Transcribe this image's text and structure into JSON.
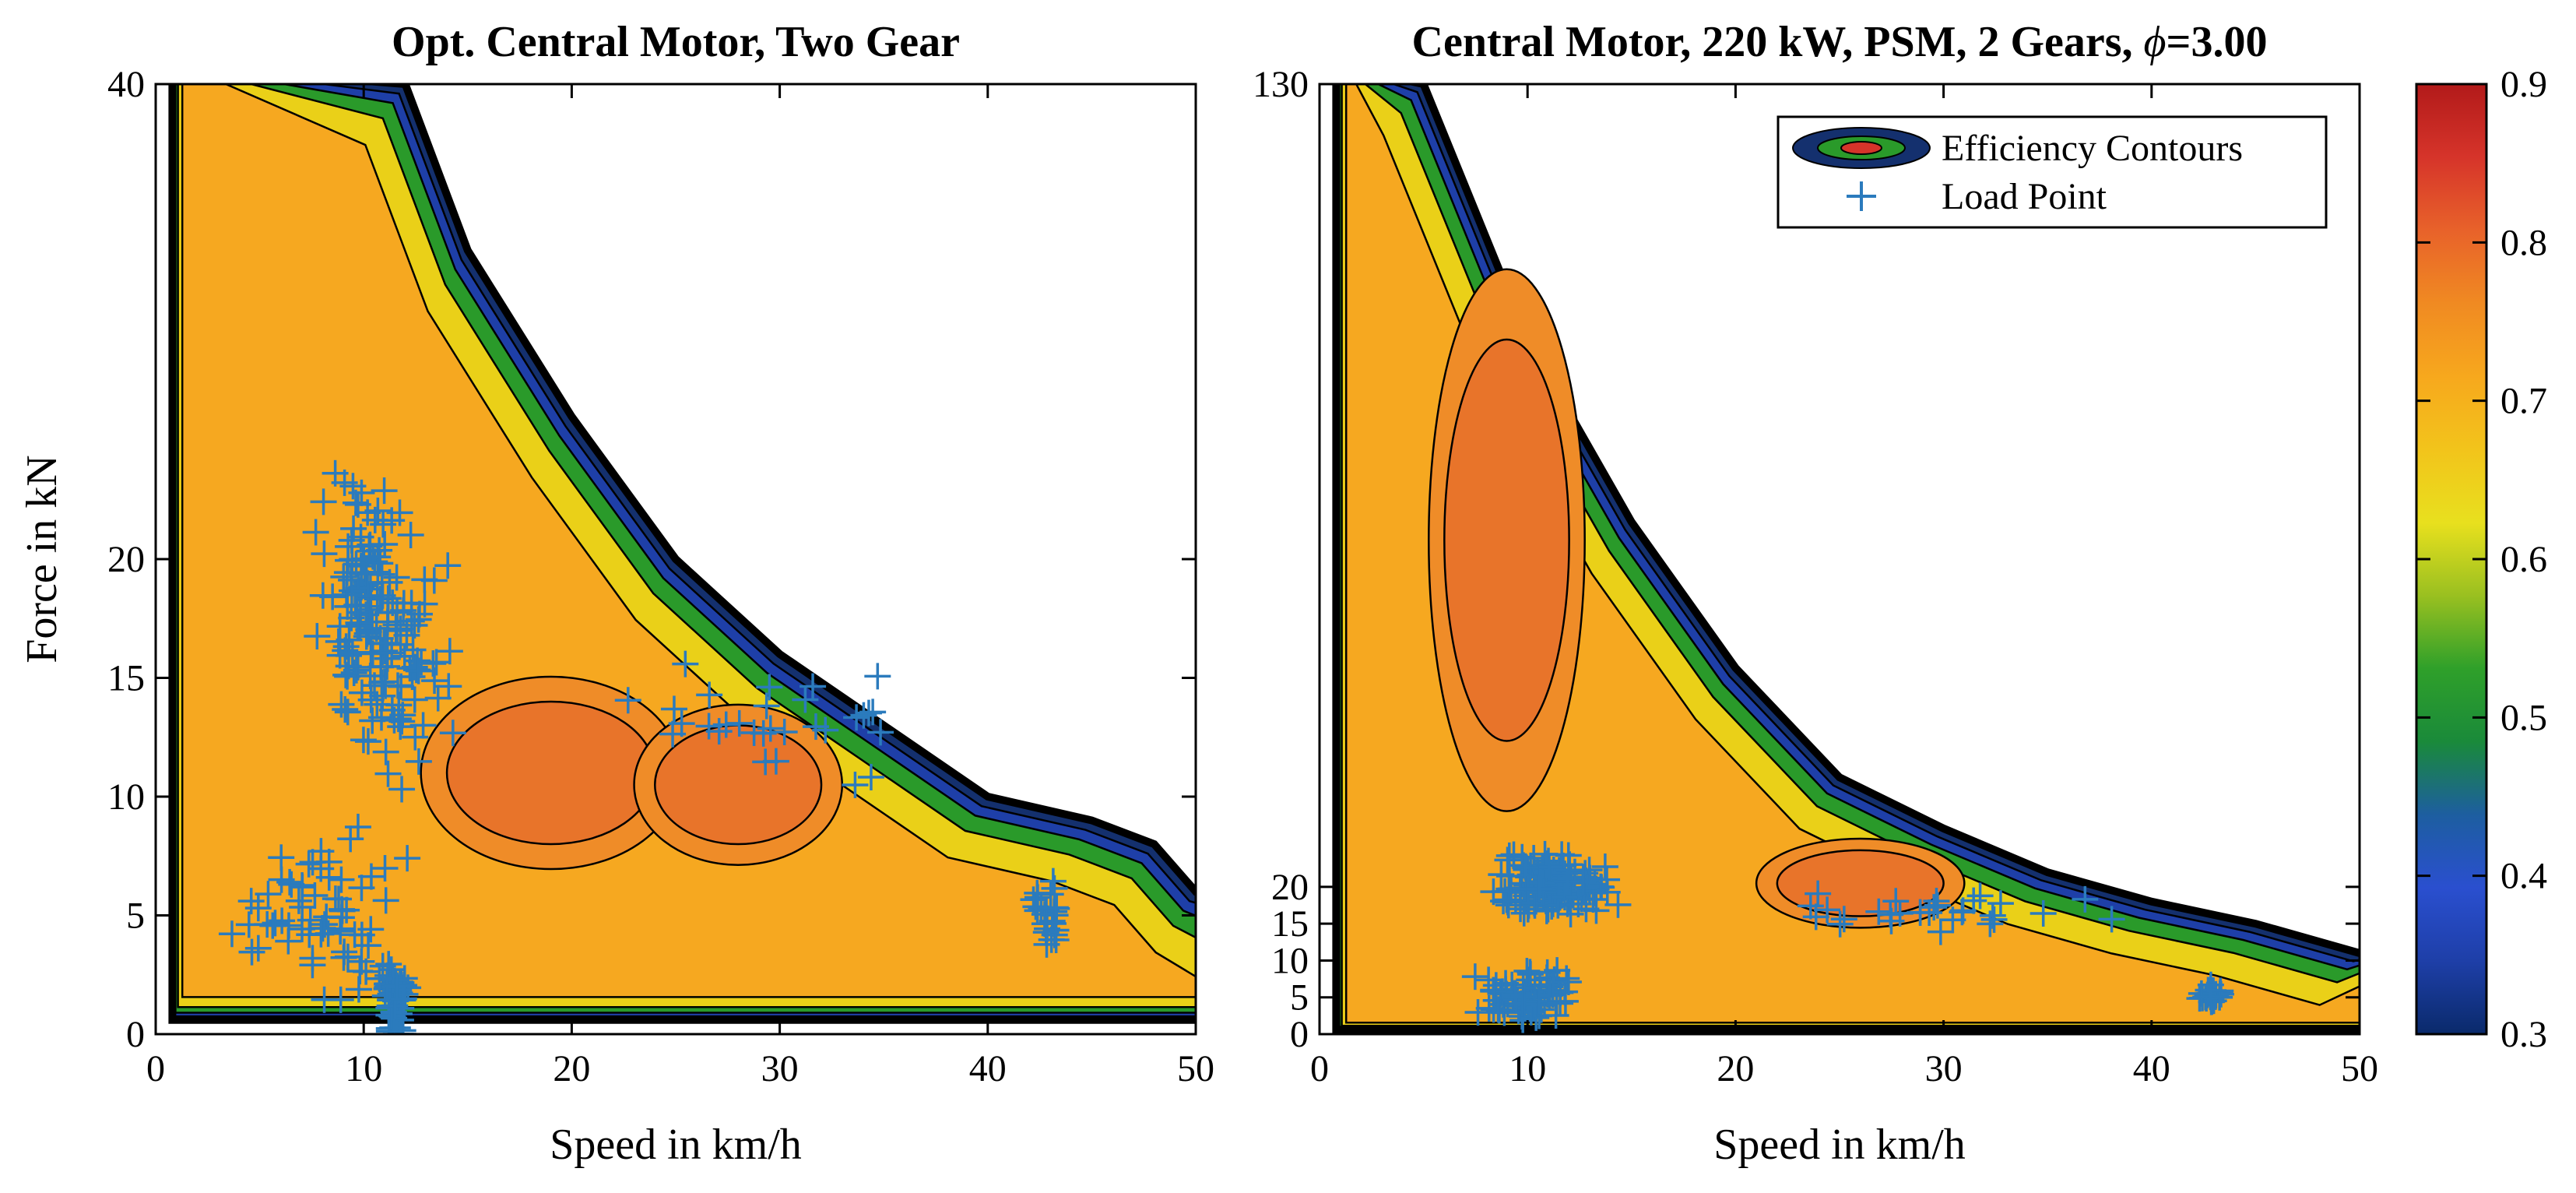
{
  "chart_data": [
    {
      "type": "contour",
      "title": "Opt. Central Motor, Two Gear",
      "xlabel": "Speed in km/h",
      "ylabel": "Force in kN",
      "xlim": [
        0,
        50
      ],
      "ylim": [
        0,
        40
      ],
      "xticks": [
        "0",
        "10",
        "20",
        "30",
        "40",
        "50"
      ],
      "yticks": [
        "0",
        "5",
        "10",
        "15",
        "20",
        "40"
      ],
      "contour_levels": [
        0.3,
        0.4,
        0.5,
        0.6,
        0.7,
        0.75,
        0.8,
        0.83,
        0.86
      ],
      "peak_efficiency_regions": [
        {
          "x": [
            14,
            24
          ],
          "y": [
            8,
            14
          ],
          "efficiency": 0.86
        },
        {
          "x": [
            24,
            32
          ],
          "y": [
            8,
            13
          ],
          "efficiency": 0.86
        }
      ],
      "max_force_envelope": {
        "x": [
          12,
          15,
          20,
          25,
          30,
          35,
          40,
          45,
          48,
          50
        ],
        "y": [
          40,
          33,
          26,
          20,
          16,
          13,
          10,
          9,
          8,
          6
        ]
      },
      "load_points": {
        "name": "Load Point",
        "clusters": [
          {
            "x_center": 10,
            "y_center": 18,
            "x_spread": 3,
            "y_spread": 7,
            "count": 120
          },
          {
            "x_center": 12,
            "y_center": 16,
            "x_spread": 3,
            "y_spread": 6,
            "count": 60
          },
          {
            "x_center": 11.5,
            "y_center": 1.5,
            "x_spread": 0.8,
            "y_spread": 2.5,
            "count": 60
          },
          {
            "x_center": 8,
            "y_center": 5,
            "x_spread": 5,
            "y_spread": 5,
            "count": 70
          },
          {
            "x_center": 43,
            "y_center": 5,
            "x_spread": 1,
            "y_spread": 2,
            "count": 25
          },
          {
            "x_center": 30,
            "y_center": 13,
            "x_spread": 9,
            "y_spread": 3,
            "count": 30
          }
        ]
      }
    },
    {
      "type": "contour",
      "title": "Central Motor, 220 kW, PSM, 2 Gears, ",
      "title_phi": "ϕ",
      "title_suffix": "=3.00",
      "xlabel": "Speed in km/h",
      "ylabel": "",
      "xlim": [
        0,
        50
      ],
      "ylim": [
        0,
        130
      ],
      "xticks": [
        "0",
        "10",
        "20",
        "30",
        "40",
        "50"
      ],
      "yticks": [
        "0",
        "5",
        "10",
        "15",
        "20",
        "130"
      ],
      "contour_levels": [
        0.3,
        0.4,
        0.5,
        0.6,
        0.7,
        0.75,
        0.8,
        0.85
      ],
      "peak_efficiency_regions": [
        {
          "x": [
            6,
            12
          ],
          "y": [
            40,
            95
          ],
          "efficiency": 0.85
        },
        {
          "x": [
            22,
            30
          ],
          "y": [
            16,
            25
          ],
          "efficiency": 0.85
        }
      ],
      "max_force_envelope": {
        "x": [
          5,
          10,
          15,
          20,
          25,
          30,
          35,
          40,
          45,
          50
        ],
        "y": [
          130,
          95,
          70,
          50,
          35,
          28,
          22,
          18,
          15,
          11
        ]
      },
      "load_points": {
        "name": "Load Point",
        "clusters": [
          {
            "x_center": 11,
            "y_center": 20,
            "x_spread": 4,
            "y_spread": 6,
            "count": 150
          },
          {
            "x_center": 10,
            "y_center": 5,
            "x_spread": 3,
            "y_spread": 5,
            "count": 80
          },
          {
            "x_center": 43,
            "y_center": 5,
            "x_spread": 1,
            "y_spread": 2,
            "count": 25
          },
          {
            "x_center": 30,
            "y_center": 17,
            "x_spread": 10,
            "y_spread": 4,
            "count": 30
          }
        ]
      },
      "legend": {
        "position": "top-right",
        "entries": [
          "Efficiency Contours",
          "Load Point"
        ]
      }
    }
  ],
  "colorbar": {
    "min": 0.3,
    "max": 0.9,
    "ticks": [
      "0.3",
      "0.4",
      "0.5",
      "0.6",
      "0.7",
      "0.8",
      "0.9"
    ],
    "colors": [
      "#0a2a6b",
      "#1e3fa8",
      "#2a4fcf",
      "#1d5ea0",
      "#1a8a3a",
      "#2fa02a",
      "#9ac020",
      "#e8e01e",
      "#f2c41b",
      "#f7a81d",
      "#f08a22",
      "#e8622a",
      "#d6342a",
      "#b21a1a"
    ]
  },
  "colors": {
    "load_point": "#2b7bbd",
    "contour_line": "#000000",
    "zone_outer_blue": "#14306e",
    "zone_green": "#2a9a2a",
    "zone_yellow": "#ead018",
    "zone_light_orange": "#f6a820",
    "zone_orange": "#ef8c28",
    "zone_dark_orange": "#e8742a"
  }
}
